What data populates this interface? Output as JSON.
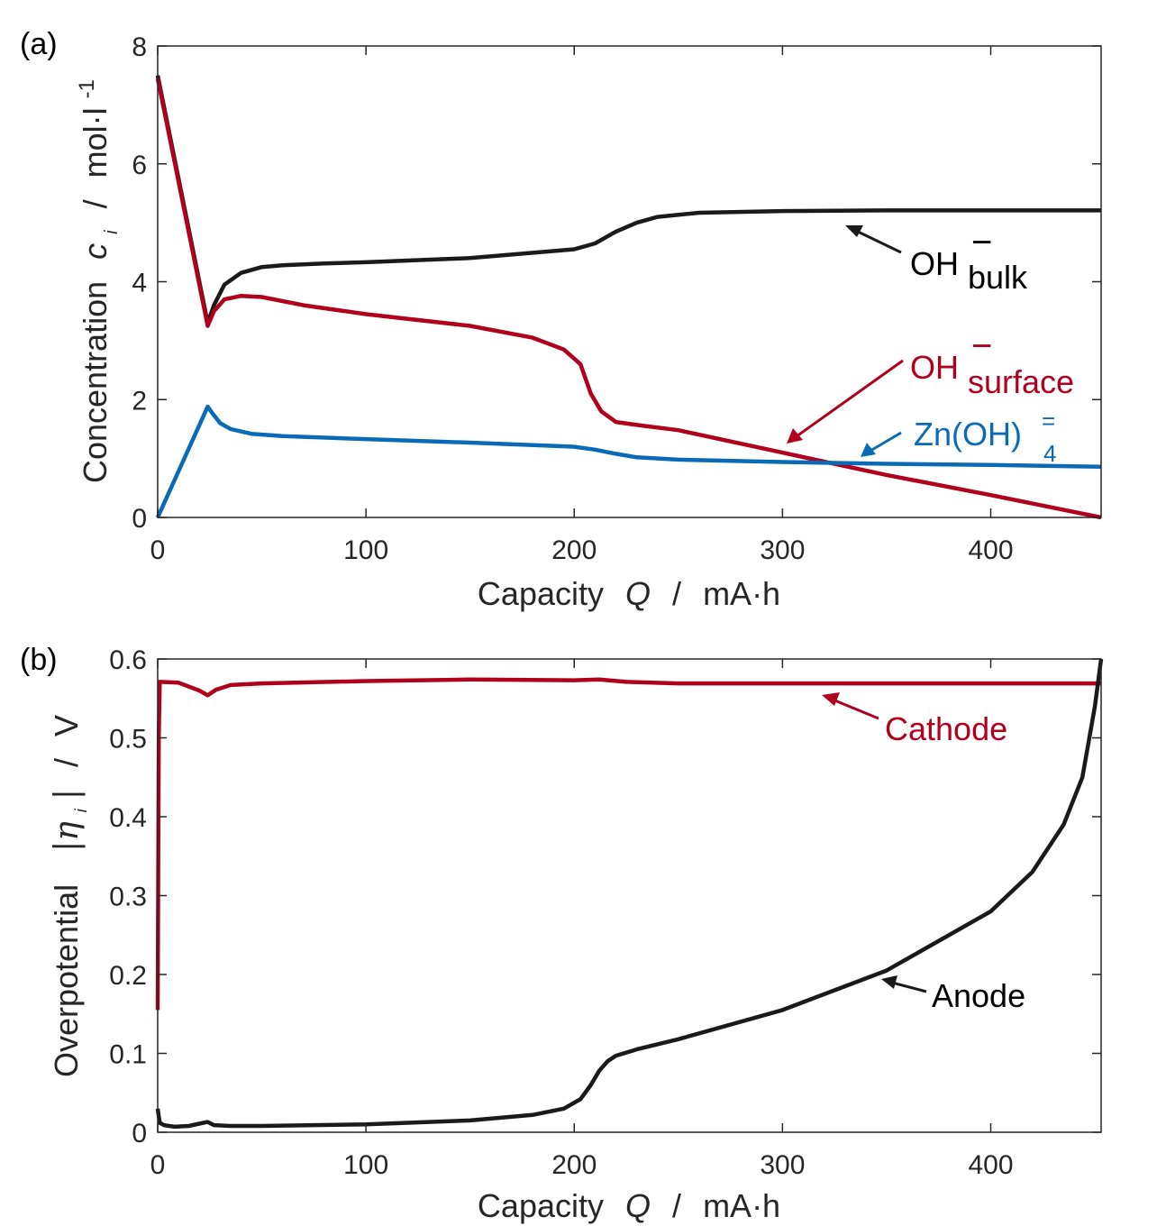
{
  "chart_data": [
    {
      "panel_label": "(a)",
      "type": "line",
      "title": "",
      "xlabel": {
        "main": "Capacity",
        "var": "Q",
        "sep": "/",
        "unit": "mA·h"
      },
      "ylabel": {
        "main": "Concentration",
        "var": "c",
        "sub": "i",
        "sep": "/",
        "unit": "mol·l",
        "sup": "-1"
      },
      "xlim": [
        0,
        453
      ],
      "ylim": [
        0,
        8
      ],
      "xticks": [
        0,
        100,
        200,
        300,
        400
      ],
      "yticks": [
        0,
        2,
        4,
        6,
        8
      ],
      "grid": false,
      "series": [
        {
          "name": "OH_bulk",
          "label": {
            "base": "OH",
            "sup": "−",
            "sub": "bulk"
          },
          "color": "#1a1a1a",
          "x": [
            0,
            24,
            27,
            32,
            40,
            50,
            60,
            80,
            100,
            150,
            200,
            210,
            220,
            230,
            240,
            260,
            300,
            350,
            453
          ],
          "y": [
            7.5,
            3.3,
            3.6,
            3.95,
            4.15,
            4.25,
            4.28,
            4.31,
            4.33,
            4.4,
            4.55,
            4.65,
            4.85,
            5.0,
            5.1,
            5.17,
            5.2,
            5.21,
            5.21
          ]
        },
        {
          "name": "OH_surface",
          "label": {
            "base": "OH",
            "sup": "−",
            "sub": "surface"
          },
          "color": "#b0001e",
          "x": [
            0,
            24,
            27,
            32,
            40,
            50,
            70,
            100,
            150,
            180,
            195,
            203,
            208,
            213,
            220,
            230,
            250,
            300,
            350,
            400,
            453
          ],
          "y": [
            7.45,
            3.25,
            3.5,
            3.7,
            3.76,
            3.74,
            3.6,
            3.45,
            3.25,
            3.05,
            2.85,
            2.6,
            2.1,
            1.8,
            1.62,
            1.57,
            1.48,
            1.1,
            0.72,
            0.38,
            0.0
          ]
        },
        {
          "name": "Zn(OH)4",
          "label": {
            "base": "Zn(OH)",
            "sup": "=",
            "sub": "4"
          },
          "color": "#0a6ab5",
          "x": [
            0,
            24,
            26,
            30,
            35,
            45,
            60,
            100,
            150,
            200,
            210,
            220,
            230,
            250,
            300,
            350,
            400,
            453
          ],
          "y": [
            0.0,
            1.88,
            1.78,
            1.6,
            1.5,
            1.42,
            1.38,
            1.33,
            1.27,
            1.2,
            1.15,
            1.08,
            1.02,
            0.98,
            0.94,
            0.91,
            0.89,
            0.86
          ]
        }
      ]
    },
    {
      "panel_label": "(b)",
      "type": "line",
      "title": "",
      "xlabel": {
        "main": "Capacity",
        "var": "Q",
        "sep": "/",
        "unit": "mA·h"
      },
      "ylabel": {
        "main": "Overpotential",
        "var": "|η",
        "sub": "i",
        "close": "|",
        "sep": "/",
        "unit": "V"
      },
      "xlim": [
        0,
        453
      ],
      "ylim": [
        0,
        0.6
      ],
      "xticks": [
        0,
        100,
        200,
        300,
        400
      ],
      "yticks": [
        0,
        0.1,
        0.2,
        0.3,
        0.4,
        0.5,
        0.6
      ],
      "ytick_labels": [
        "0",
        "0.1",
        "0.2",
        "0.3",
        "0.4",
        "0.5",
        "0.6"
      ],
      "grid": false,
      "series": [
        {
          "name": "Cathode",
          "label": {
            "base": "Cathode"
          },
          "color": "#b0001e",
          "x": [
            0,
            0.5,
            1,
            10,
            20,
            24,
            28,
            35,
            50,
            100,
            150,
            200,
            212,
            225,
            250,
            300,
            453
          ],
          "y": [
            0.155,
            0.5,
            0.571,
            0.57,
            0.56,
            0.554,
            0.561,
            0.567,
            0.569,
            0.572,
            0.574,
            0.573,
            0.574,
            0.571,
            0.569,
            0.569,
            0.569
          ]
        },
        {
          "name": "Anode",
          "label": {
            "base": "Anode"
          },
          "color": "#1a1a1a",
          "x": [
            0,
            0.5,
            1,
            3,
            8,
            15,
            22,
            24,
            27,
            35,
            50,
            100,
            150,
            180,
            195,
            203,
            208,
            212,
            216,
            220,
            230,
            250,
            300,
            350,
            400,
            420,
            435,
            444,
            450,
            453
          ],
          "y": [
            0.03,
            0.02,
            0.012,
            0.009,
            0.007,
            0.008,
            0.012,
            0.013,
            0.009,
            0.008,
            0.008,
            0.01,
            0.015,
            0.022,
            0.03,
            0.042,
            0.06,
            0.078,
            0.09,
            0.097,
            0.105,
            0.118,
            0.155,
            0.205,
            0.28,
            0.33,
            0.39,
            0.45,
            0.54,
            0.6
          ]
        }
      ]
    }
  ]
}
